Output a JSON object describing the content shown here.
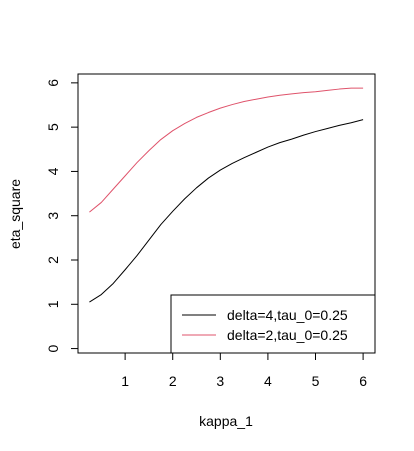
{
  "chart_data": {
    "type": "line",
    "title": "",
    "xlabel": "kappa_1",
    "ylabel": "eta_square",
    "xlim": [
      0.01,
      6.25
    ],
    "ylim": [
      -0.1,
      6.2
    ],
    "xticks": [
      1,
      2,
      3,
      4,
      5,
      6
    ],
    "yticks": [
      0,
      1,
      2,
      3,
      4,
      5,
      6
    ],
    "grid": false,
    "legend_position": "bottom-right",
    "series": [
      {
        "name": "delta=4,tau_0=0.25",
        "color": "#000000",
        "x": [
          0.25,
          0.5,
          0.75,
          1.0,
          1.25,
          1.5,
          1.75,
          2.0,
          2.25,
          2.5,
          2.75,
          3.0,
          3.25,
          3.5,
          3.75,
          4.0,
          4.25,
          4.5,
          4.75,
          5.0,
          5.25,
          5.5,
          5.75,
          6.0
        ],
        "y": [
          1.05,
          1.22,
          1.47,
          1.78,
          2.1,
          2.45,
          2.8,
          3.1,
          3.38,
          3.63,
          3.85,
          4.03,
          4.18,
          4.31,
          4.43,
          4.55,
          4.65,
          4.73,
          4.82,
          4.9,
          4.97,
          5.04,
          5.1,
          5.17
        ]
      },
      {
        "name": "delta=2,tau_0=0.25",
        "color": "#DF536B",
        "x": [
          0.25,
          0.5,
          0.75,
          1.0,
          1.25,
          1.5,
          1.75,
          2.0,
          2.25,
          2.5,
          2.75,
          3.0,
          3.25,
          3.5,
          3.75,
          4.0,
          4.25,
          4.5,
          4.75,
          5.0,
          5.25,
          5.5,
          5.75,
          6.0
        ],
        "y": [
          3.08,
          3.3,
          3.6,
          3.9,
          4.2,
          4.47,
          4.72,
          4.92,
          5.08,
          5.22,
          5.33,
          5.43,
          5.51,
          5.58,
          5.63,
          5.68,
          5.72,
          5.75,
          5.78,
          5.8,
          5.83,
          5.86,
          5.88,
          5.88
        ]
      }
    ]
  }
}
